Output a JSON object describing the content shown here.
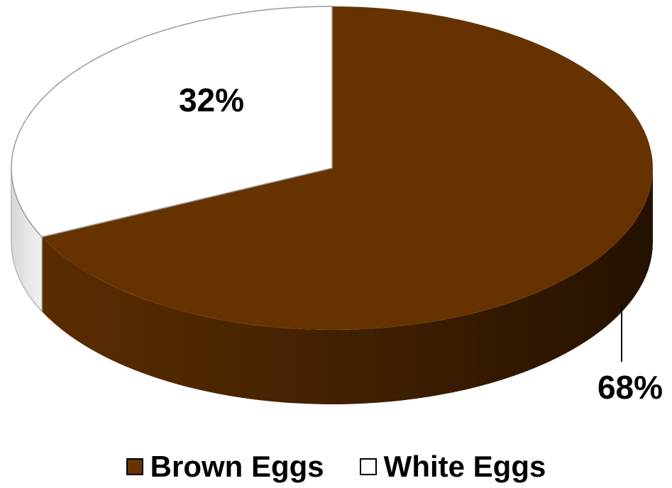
{
  "chart_data": {
    "type": "pie",
    "categories": [
      "Brown Eggs",
      "White Eggs"
    ],
    "values": [
      68,
      32
    ],
    "data_labels": [
      "68%",
      "32%"
    ],
    "colors": [
      "#663300",
      "#ffffff"
    ],
    "legend_position": "bottom",
    "style": "3d"
  },
  "legend": {
    "items": [
      {
        "label": "Brown Eggs",
        "color": "#663300"
      },
      {
        "label": "White Eggs",
        "color": "#ffffff"
      }
    ]
  }
}
